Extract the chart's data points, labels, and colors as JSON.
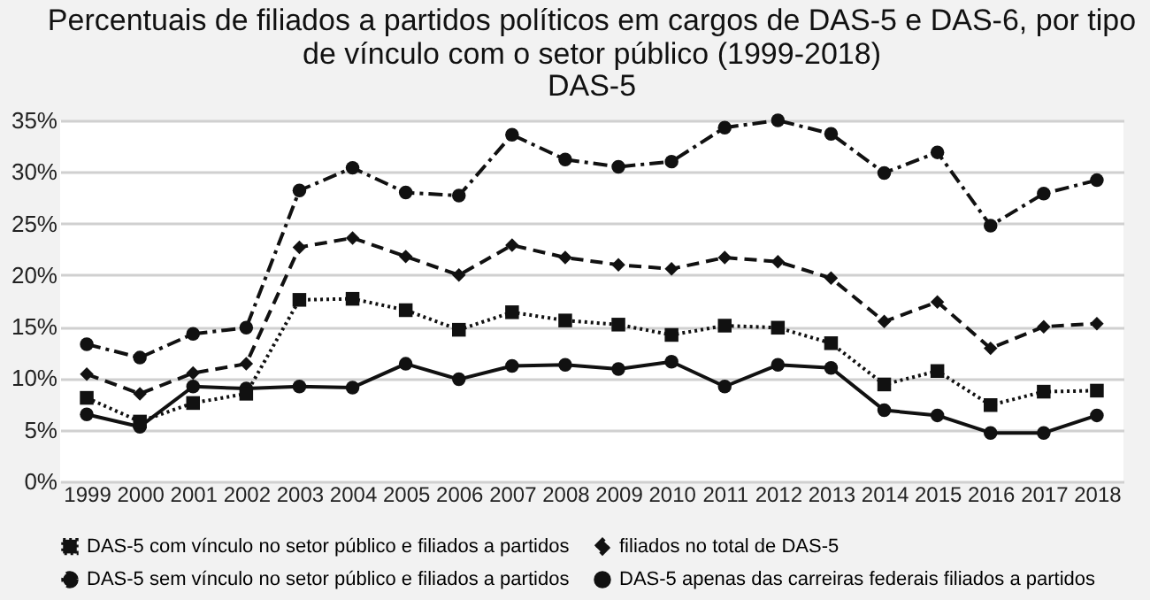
{
  "chart_data": {
    "type": "line",
    "title": [
      "Percentuais de filiados a partidos políticos em cargos de DAS-5 e DAS-6, por tipo",
      "de vínculo com o setor público  (1999-2018)"
    ],
    "subtitle": "DAS-5",
    "categories": [
      "1999",
      "2000",
      "2001",
      "2002",
      "2003",
      "2004",
      "2005",
      "2006",
      "2007",
      "2008",
      "2009",
      "2010",
      "2011",
      "2012",
      "2013",
      "2014",
      "2015",
      "2016",
      "2017",
      "2018"
    ],
    "series": [
      {
        "name": "DAS-5 com vínculo no setor público e filiados a partidos",
        "color": "#111111",
        "marker": "square",
        "line_style": "dotted",
        "values": [
          8.1,
          5.8,
          7.6,
          8.5,
          17.6,
          17.7,
          16.6,
          14.7,
          16.4,
          15.6,
          15.2,
          14.2,
          15.1,
          14.9,
          13.4,
          9.4,
          10.7,
          7.4,
          8.7,
          8.8
        ]
      },
      {
        "name": "filiados no total de DAS-5",
        "color": "#111111",
        "marker": "diamond",
        "line_style": "dashed",
        "values": [
          10.4,
          8.5,
          10.5,
          11.4,
          22.7,
          23.6,
          21.8,
          20.0,
          22.9,
          21.7,
          21.0,
          20.6,
          21.7,
          21.3,
          19.7,
          15.5,
          17.4,
          12.9,
          15.0,
          15.3
        ]
      },
      {
        "name": "DAS-5 sem vínculo no setor público e filiados a partidos",
        "color": "#111111",
        "marker": "circle",
        "line_style": "dashdot",
        "values": [
          13.3,
          12.0,
          14.3,
          14.9,
          28.2,
          30.4,
          28.0,
          27.7,
          33.6,
          31.2,
          30.5,
          31.0,
          34.3,
          35.0,
          33.7,
          29.9,
          31.9,
          24.8,
          27.9,
          29.2
        ]
      },
      {
        "name": "DAS-5 apenas das carreiras federais filiados a partidos",
        "color": "#111111",
        "marker": "circle",
        "line_style": "solid",
        "values": [
          6.5,
          5.3,
          9.2,
          9.0,
          9.2,
          9.1,
          11.4,
          9.9,
          11.2,
          11.3,
          10.9,
          11.6,
          9.2,
          11.3,
          11.0,
          6.9,
          6.4,
          4.7,
          4.7,
          6.4
        ]
      }
    ],
    "ylim": [
      0,
      35
    ],
    "yticks": [
      {
        "value": 0,
        "label": "0%"
      },
      {
        "value": 5,
        "label": "5%"
      },
      {
        "value": 10,
        "label": "10%"
      },
      {
        "value": 15,
        "label": "15%"
      },
      {
        "value": 20,
        "label": "20%"
      },
      {
        "value": 25,
        "label": "25%"
      },
      {
        "value": 30,
        "label": "30%"
      },
      {
        "value": 35,
        "label": "35%"
      }
    ],
    "grid": "y",
    "legend": "bottom"
  }
}
